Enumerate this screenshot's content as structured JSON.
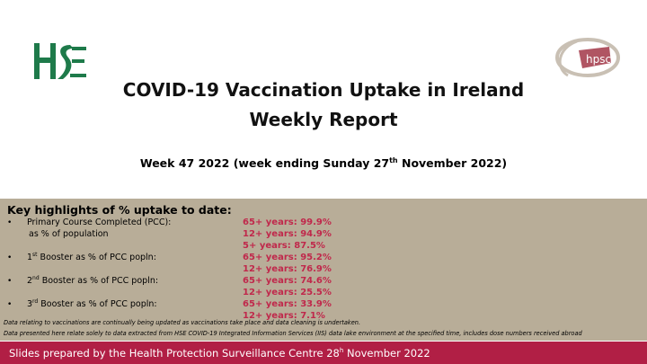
{
  "logos": {
    "left": "HSE",
    "right": "hpsc"
  },
  "title_line1": "COVID-19 Vaccination Uptake in Ireland",
  "title_line2": "Weekly Report",
  "week_line": {
    "before": "Week 47 2022 (week ending Sunday 27",
    "sup": "th",
    "after": " November 2022)"
  },
  "highlights": {
    "heading": "Key highlights of % uptake to date:",
    "bullet_glyph": "•",
    "pcc_label": "Primary Course Completed (PCC):",
    "pcc_sub": "as % of population",
    "pcc_values": [
      "65+ years: 99.9%",
      "12+ years: 94.9%",
      "5+   years: 87.5%"
    ],
    "b1_num": "1",
    "b1_sup": "st",
    "b1_rest": " Booster as % of PCC popln:",
    "b1_values": [
      "65+ years: 95.2%",
      "12+ years: 76.9%"
    ],
    "b2_num": "2",
    "b2_sup": "nd",
    "b2_rest": " Booster as % of PCC popln:",
    "b2_values": [
      "65+ years: 74.6%",
      "12+ years: 25.5%"
    ],
    "b3_num": "3",
    "b3_sup": "rd",
    "b3_rest": " Booster as % of PCC popln:",
    "b3_values": [
      "65+ years: 33.9%",
      "12+ years: 7.1%"
    ]
  },
  "notes": [
    "Data relating to vaccinations are continually being updated as vaccinations take place and data cleaning is undertaken.",
    "Data presented here relate solely to data extracted from HSE COVID-19 Integrated Information Services (IIS) data lake environment at the specified time, includes dose numbers received abroad"
  ],
  "footer": {
    "before": "Slides prepared by the Health Protection Surveillance Centre 28",
    "sup": "h",
    "after": " November 2022"
  },
  "colors": {
    "hse_green": "#1e7a4a",
    "panel": "#b8ad98",
    "accent": "#c0284b",
    "footer": "#b11f45"
  }
}
